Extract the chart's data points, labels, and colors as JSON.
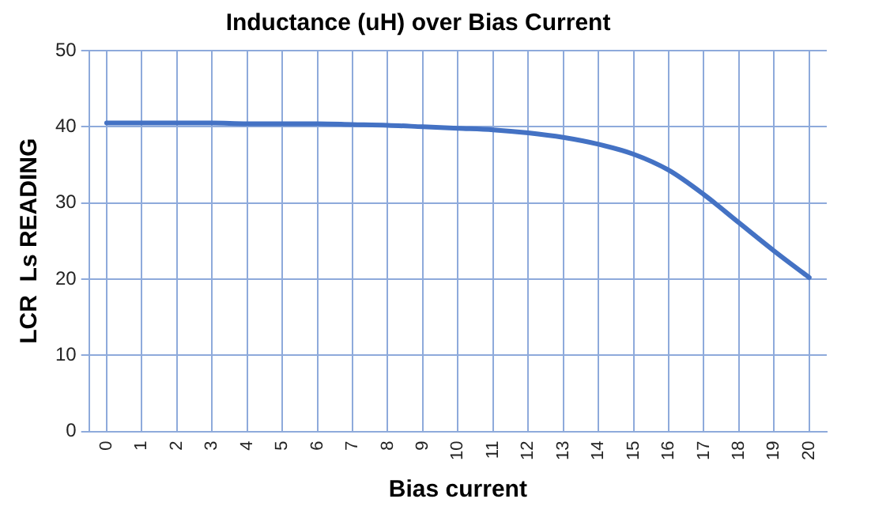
{
  "chart_data": {
    "type": "line",
    "title": "Inductance (uH) over Bias Current",
    "xlabel": "Bias current",
    "ylabel": "LCR  Ls READING",
    "categories": [
      "0",
      "1",
      "2",
      "3",
      "4",
      "5",
      "6",
      "7",
      "8",
      "9",
      "10",
      "11",
      "12",
      "13",
      "14",
      "15",
      "16",
      "17",
      "18",
      "19",
      "20"
    ],
    "series": [
      {
        "color": "#4472c4",
        "values": [
          40.5,
          40.5,
          40.5,
          40.5,
          40.4,
          40.4,
          40.4,
          40.3,
          40.2,
          40.0,
          39.8,
          39.6,
          39.2,
          38.6,
          37.7,
          36.4,
          34.3,
          31.1,
          27.4,
          23.7,
          20.2
        ]
      }
    ],
    "ylim": [
      0,
      50
    ],
    "yticks": [
      0,
      10,
      20,
      30,
      40,
      50
    ],
    "grid": true,
    "legend": false,
    "marker": "none",
    "line_style": "solid"
  }
}
